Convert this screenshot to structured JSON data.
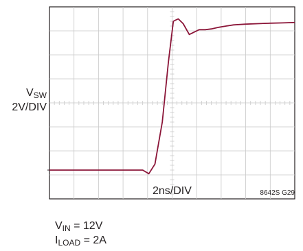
{
  "chart_data": {
    "type": "line",
    "ylabel_var": "V",
    "ylabel_sub": "SW",
    "ylabel_scale": "2V/DIV",
    "xlabel": "2ns/DIV",
    "figure_id": "8642S G29",
    "grid": true,
    "x_divisions": 10,
    "y_divisions": 8,
    "xlim": [
      0,
      10
    ],
    "ylim": [
      0,
      8
    ],
    "series": [
      {
        "color": "#8b1538",
        "x": [
          0,
          1,
          2,
          3,
          3.8,
          4.05,
          4.3,
          4.6,
          4.85,
          5.05,
          5.25,
          5.45,
          5.7,
          5.9,
          6.1,
          6.35,
          6.6,
          6.9,
          7.2,
          7.5,
          8,
          8.5,
          9,
          9.5,
          10
        ],
        "y": [
          1.2,
          1.2,
          1.2,
          1.2,
          1.2,
          1.05,
          1.45,
          3.2,
          5.7,
          7.4,
          7.5,
          7.3,
          6.85,
          6.95,
          7.05,
          7.05,
          7.08,
          7.15,
          7.2,
          7.25,
          7.28,
          7.3,
          7.32,
          7.33,
          7.35
        ]
      }
    ]
  },
  "conditions": {
    "vin_var": "V",
    "vin_sub": "IN",
    "vin_value": " = 12V",
    "iload_var": "I",
    "iload_sub": "LOAD",
    "iload_value": " = 2A"
  }
}
